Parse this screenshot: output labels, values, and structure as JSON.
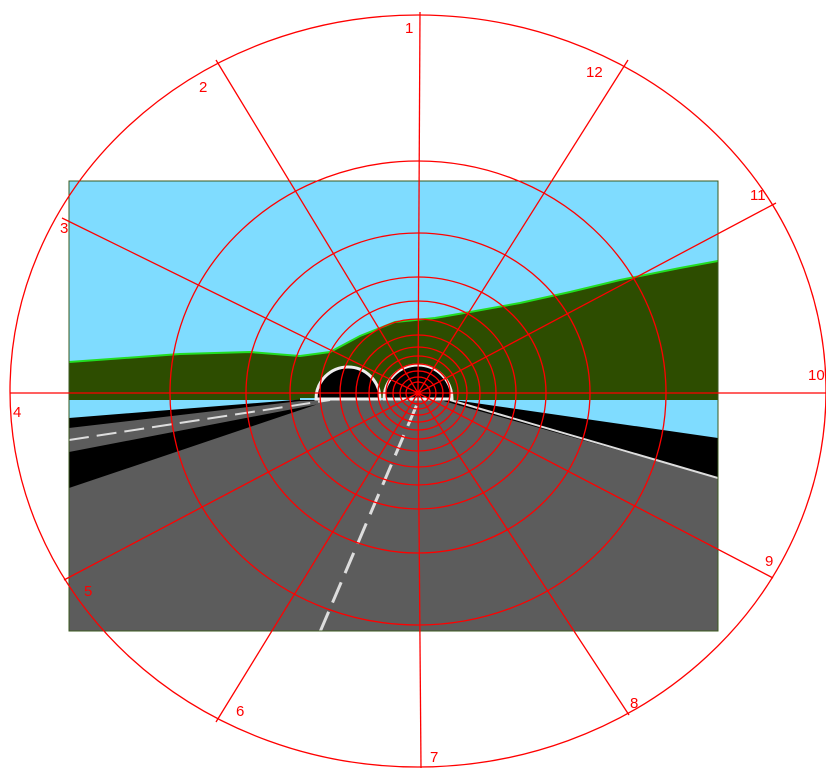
{
  "diagram": {
    "sector_labels": [
      "1",
      "2",
      "3",
      "4",
      "5",
      "6",
      "7",
      "8",
      "9",
      "10",
      "11",
      "12"
    ],
    "colors": {
      "overlay": "#ff0000",
      "background": "#ffffff",
      "sky": "#7fdcff",
      "hills": "#2d4d00",
      "ridge_line": "#22dd22",
      "road": "#5c5c5c",
      "road_edge": "#000000",
      "lane_marking": "#dddddd",
      "tunnel_mouth": "#000000",
      "tunnel_rim": "#eeeeee",
      "frame_border": "#3b5a1f"
    }
  }
}
